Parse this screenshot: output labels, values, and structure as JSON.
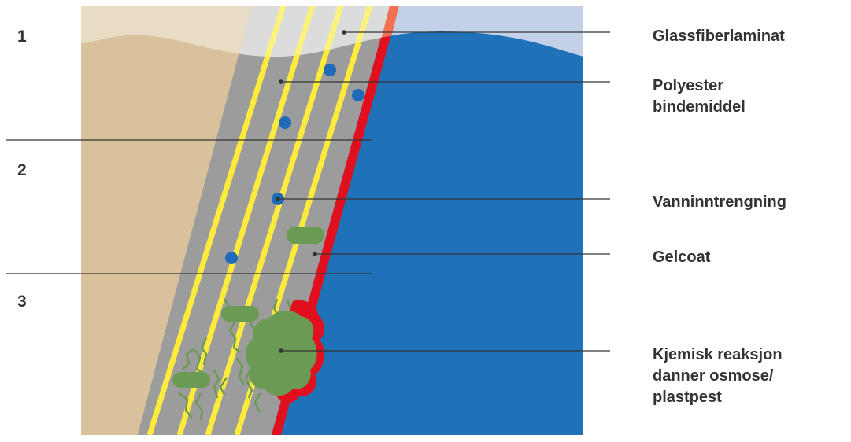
{
  "stages": [
    "1",
    "2",
    "3"
  ],
  "labels": {
    "glassfiber": "Glassfiberlaminat",
    "polyester_line1": "Polyester",
    "polyester_line2": "bindemiddel",
    "water": "Vanninntrengning",
    "gelcoat": "Gelcoat",
    "osmosis_line1": "Kjemisk reaksjon",
    "osmosis_line2": "danner osmose/",
    "osmosis_line3": "plastpest"
  },
  "colors": {
    "hull": "#d9c29b",
    "hull_light": "#e8dcc4",
    "laminate": "#9c9c9c",
    "laminate_light": "#dcdcdc",
    "fiber": "#ffeb3b",
    "gelcoat": "#e0101e",
    "gelcoat_light": "#f07050",
    "water": "#1f72b8",
    "water_light": "#c3d0e8",
    "blister": "#6b9a54",
    "droplet": "#1f6bb8",
    "leader": "#333333"
  }
}
